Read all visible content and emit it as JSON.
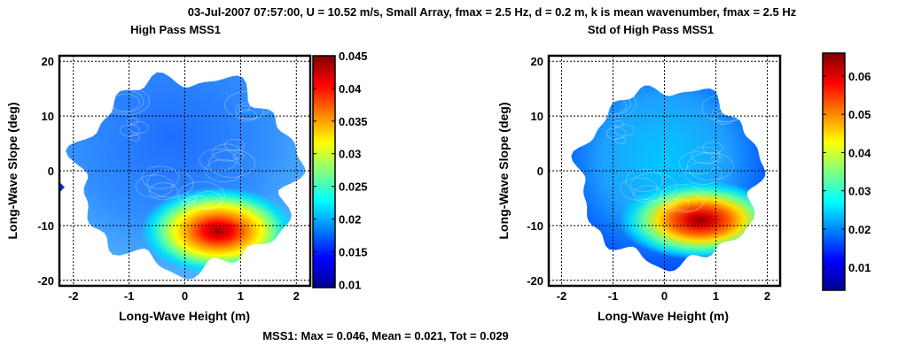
{
  "figure": {
    "suptitle": "03-Jul-2007 07:57:00, U = 10.52 m/s, Small Array, fmax = 2.5 Hz, d = 0.2 m, k is mean wavenumber, fmax = 2.5 Hz",
    "footer": "MSS1: Max = 0.046, Mean = 0.021, Tot = 0.029"
  },
  "chart_data": [
    {
      "type": "heatmap",
      "title": "High Pass MSS1",
      "xlabel": "Long-Wave Height (m)",
      "ylabel": "Long-Wave Slope (deg)",
      "xlim": [
        -2.25,
        2.25
      ],
      "ylim": [
        -21,
        21
      ],
      "xticks": [
        -2,
        -1,
        0,
        1,
        2
      ],
      "yticks": [
        -20,
        -10,
        0,
        10,
        20
      ],
      "grid": true,
      "colormap": "jet",
      "colorbar": {
        "min": 0.0095,
        "max": 0.045,
        "ticks": [
          0.01,
          0.015,
          0.02,
          0.025,
          0.03,
          0.035,
          0.04,
          0.045
        ]
      },
      "hotspot": {
        "x": 0.6,
        "y": -11,
        "value": 0.045
      }
    },
    {
      "type": "heatmap",
      "title": "Std of High Pass MSS1",
      "xlabel": "Long-Wave Height (m)",
      "ylabel": "Long-Wave Slope (deg)",
      "xlim": [
        -2.25,
        2.25
      ],
      "ylim": [
        -21,
        21
      ],
      "xticks": [
        -2,
        -1,
        0,
        1,
        2
      ],
      "yticks": [
        -20,
        -10,
        0,
        10,
        20
      ],
      "grid": true,
      "colormap": "jet",
      "colorbar": {
        "min": 0.004,
        "max": 0.066,
        "ticks": [
          0.01,
          0.02,
          0.03,
          0.04,
          0.05,
          0.06
        ]
      },
      "hotspot": {
        "x": 0.7,
        "y": -9,
        "value": 0.066
      }
    }
  ]
}
